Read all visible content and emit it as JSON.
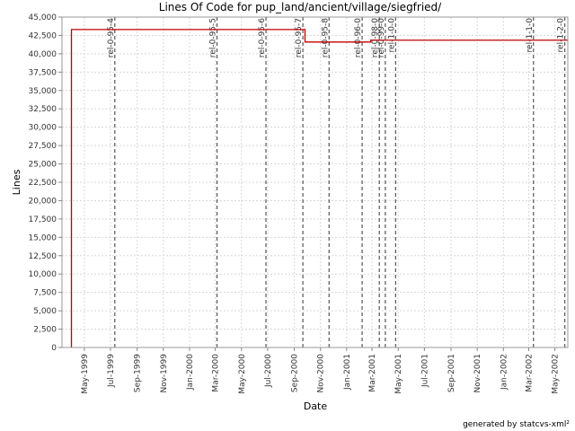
{
  "chart_data": {
    "type": "line",
    "title": "Lines Of Code for pup_land/ancient/village/siegfried/",
    "xlabel": "Date",
    "ylabel": "Lines",
    "ylim": [
      0,
      45000
    ],
    "xlim": [
      "1999-03-10",
      "2002-05-31"
    ],
    "yticks": [
      0,
      2500,
      5000,
      7500,
      10000,
      12500,
      15000,
      17500,
      20000,
      22500,
      25000,
      27500,
      30000,
      32500,
      35000,
      37500,
      40000,
      42500,
      45000
    ],
    "ytick_labels": [
      "0",
      "2,500",
      "5,000",
      "7,500",
      "10,000",
      "12,500",
      "15,000",
      "17,500",
      "20,000",
      "22,500",
      "25,000",
      "27,500",
      "30,000",
      "32,500",
      "35,000",
      "37,500",
      "40,000",
      "42,500",
      "45,000"
    ],
    "xticks": [
      "1999-05-01",
      "1999-07-01",
      "1999-09-01",
      "1999-11-01",
      "2000-01-01",
      "2000-03-01",
      "2000-05-01",
      "2000-07-01",
      "2000-09-01",
      "2000-11-01",
      "2001-01-01",
      "2001-03-01",
      "2001-05-01",
      "2001-07-01",
      "2001-09-01",
      "2001-11-01",
      "2002-01-01",
      "2002-03-01",
      "2002-05-01"
    ],
    "xtick_labels": [
      "May-1999",
      "Jul-1999",
      "Sep-1999",
      "Nov-1999",
      "Jan-2000",
      "Mar-2000",
      "May-2000",
      "Jul-2000",
      "Sep-2000",
      "Nov-2000",
      "Jan-2001",
      "Mar-2001",
      "May-2001",
      "Jul-2001",
      "Sep-2001",
      "Nov-2001",
      "Jan-2002",
      "Mar-2002",
      "May-2002"
    ],
    "grid": true,
    "series": [
      {
        "color": "#c00000",
        "step": true,
        "x": [
          "1999-04-01",
          "1999-04-01",
          "2000-09-26",
          "2001-02-26",
          "2002-05-31"
        ],
        "y": [
          0,
          43300,
          41600,
          41850,
          41850
        ]
      }
    ],
    "tags": [
      {
        "label": "rel-0-95-4",
        "date": "1999-07-11"
      },
      {
        "label": "rel-0-95-5",
        "date": "2000-03-05"
      },
      {
        "label": "rel-0-95-6",
        "date": "2000-06-27"
      },
      {
        "label": "rel-0-95-7",
        "date": "2000-09-21"
      },
      {
        "label": "rel-0-95-8",
        "date": "2000-11-21"
      },
      {
        "label": "rel-0-96-0",
        "date": "2001-02-06"
      },
      {
        "label": "rel-0-98-0",
        "date": "2001-03-18"
      },
      {
        "label": "rel-0-99-0",
        "date": "2001-04-01"
      },
      {
        "label": "rel-1-0-0",
        "date": "2001-04-25"
      },
      {
        "label": "rel-1-1-0",
        "date": "2002-03-12"
      },
      {
        "label": "rel-1-2-0",
        "date": "2002-05-24"
      }
    ],
    "credit": "generated by statcvs-xml²"
  }
}
